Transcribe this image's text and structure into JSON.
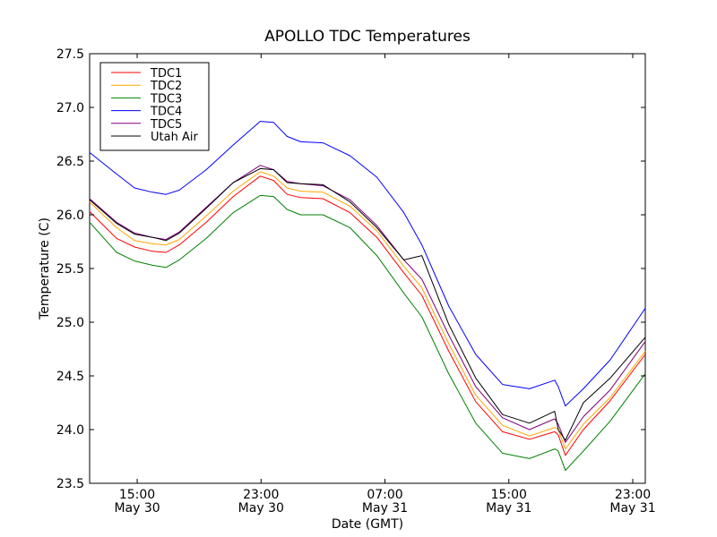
{
  "chart_data": {
    "type": "line",
    "title": "APOLLO TDC Temperatures",
    "xlabel": "Date (GMT)",
    "ylabel": "Temperature (C)",
    "x_units": "hours since May 30 00:00 GMT",
    "xlim": [
      11.93,
      47.81
    ],
    "ylim": [
      23.5,
      27.5
    ],
    "yticks": [
      23.5,
      24.0,
      24.5,
      25.0,
      25.5,
      26.0,
      26.5,
      27.0,
      27.5
    ],
    "ytick_labels": [
      "23.5",
      "24.0",
      "24.5",
      "25.0",
      "25.5",
      "26.0",
      "26.5",
      "27.0",
      "27.5"
    ],
    "xticks": [
      15,
      23,
      31,
      39,
      47
    ],
    "xtick_labels": [
      [
        "15:00",
        "May 30"
      ],
      [
        "23:00",
        "May 30"
      ],
      [
        "07:00",
        "May 31"
      ],
      [
        "15:00",
        "May 31"
      ],
      [
        "23:00",
        "May 31"
      ]
    ],
    "grid": false,
    "legend_position": "top-left",
    "x": [
      11.93,
      13.67,
      14.83,
      15.99,
      16.86,
      17.72,
      19.46,
      21.2,
      22.94,
      23.81,
      24.68,
      25.55,
      27.0,
      28.74,
      30.48,
      32.22,
      33.38,
      35.12,
      36.86,
      38.59,
      40.33,
      41.96,
      42.19,
      42.65,
      43.81,
      45.55,
      47.81
    ],
    "series": [
      {
        "name": "TDC1",
        "color": "#ff0000",
        "values": [
          26.03,
          25.78,
          25.7,
          25.66,
          25.65,
          25.72,
          25.93,
          26.17,
          26.36,
          26.32,
          26.19,
          26.16,
          26.15,
          26.02,
          25.79,
          25.46,
          25.25,
          24.73,
          24.26,
          23.98,
          23.91,
          23.98,
          23.95,
          23.76,
          24.0,
          24.27,
          24.7
        ]
      },
      {
        "name": "TDC2",
        "color": "#ffa500",
        "values": [
          26.12,
          25.88,
          25.76,
          25.73,
          25.72,
          25.77,
          25.99,
          26.22,
          26.4,
          26.36,
          26.25,
          26.22,
          26.21,
          26.08,
          25.85,
          25.52,
          25.32,
          24.8,
          24.32,
          24.04,
          23.94,
          24.02,
          24.0,
          23.82,
          24.05,
          24.3,
          24.73
        ]
      },
      {
        "name": "TDC3",
        "color": "#008000",
        "values": [
          25.93,
          25.65,
          25.57,
          25.53,
          25.51,
          25.58,
          25.78,
          26.02,
          26.18,
          26.17,
          26.05,
          26.0,
          26.0,
          25.88,
          25.62,
          25.27,
          25.05,
          24.52,
          24.06,
          23.78,
          23.73,
          23.82,
          23.8,
          23.62,
          23.8,
          24.08,
          24.52
        ]
      },
      {
        "name": "TDC4",
        "color": "#0000ff",
        "values": [
          26.58,
          26.38,
          26.25,
          26.21,
          26.19,
          26.23,
          26.42,
          26.65,
          26.87,
          26.86,
          26.73,
          26.68,
          26.67,
          26.55,
          26.35,
          26.02,
          25.72,
          25.15,
          24.7,
          24.42,
          24.38,
          24.46,
          24.4,
          24.22,
          24.38,
          24.65,
          25.13
        ]
      },
      {
        "name": "TDC5",
        "color": "#800080",
        "values": [
          26.15,
          25.93,
          25.83,
          25.79,
          25.77,
          25.84,
          26.07,
          26.3,
          26.46,
          26.42,
          26.31,
          26.29,
          26.27,
          26.14,
          25.9,
          25.58,
          25.4,
          24.88,
          24.4,
          24.11,
          24.0,
          24.1,
          24.05,
          23.88,
          24.12,
          24.37,
          24.82
        ]
      },
      {
        "name": "Utah Air",
        "color": "#000000",
        "values": [
          26.14,
          25.92,
          25.82,
          25.79,
          25.76,
          25.83,
          26.06,
          26.3,
          26.43,
          26.42,
          26.3,
          26.29,
          26.28,
          26.12,
          25.88,
          25.58,
          25.62,
          24.98,
          24.48,
          24.14,
          24.06,
          24.17,
          24.0,
          23.9,
          24.25,
          24.48,
          24.86
        ]
      }
    ]
  }
}
